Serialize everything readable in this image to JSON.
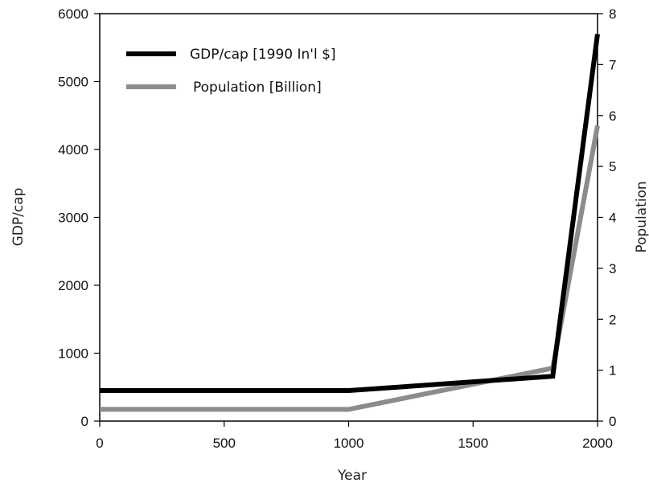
{
  "chart_data": {
    "type": "line",
    "x": [
      0,
      1000,
      1820,
      2000
    ],
    "xlabel": "Year",
    "xlim": [
      0,
      2000
    ],
    "xticks": [
      0,
      500,
      1000,
      1500,
      2000
    ],
    "ylabel_left": "GDP/cap",
    "ylim_left": [
      0,
      6000
    ],
    "yticks_left": [
      0,
      1000,
      2000,
      3000,
      4000,
      5000,
      6000
    ],
    "ylabel_right": "Population",
    "ylim_right": [
      0,
      8
    ],
    "yticks_right": [
      0,
      1,
      2,
      3,
      4,
      5,
      6,
      7,
      8
    ],
    "grid": false,
    "legend_position": "top-left",
    "series": [
      {
        "name": "GDP/cap [1990 In'l $]",
        "axis": "left",
        "color": "#000000",
        "values": [
          450,
          450,
          660,
          5700
        ]
      },
      {
        "name": "Population [Billion]",
        "axis": "right",
        "color": "#8c8c8c",
        "values": [
          0.23,
          0.23,
          1.04,
          5.8
        ]
      }
    ]
  }
}
